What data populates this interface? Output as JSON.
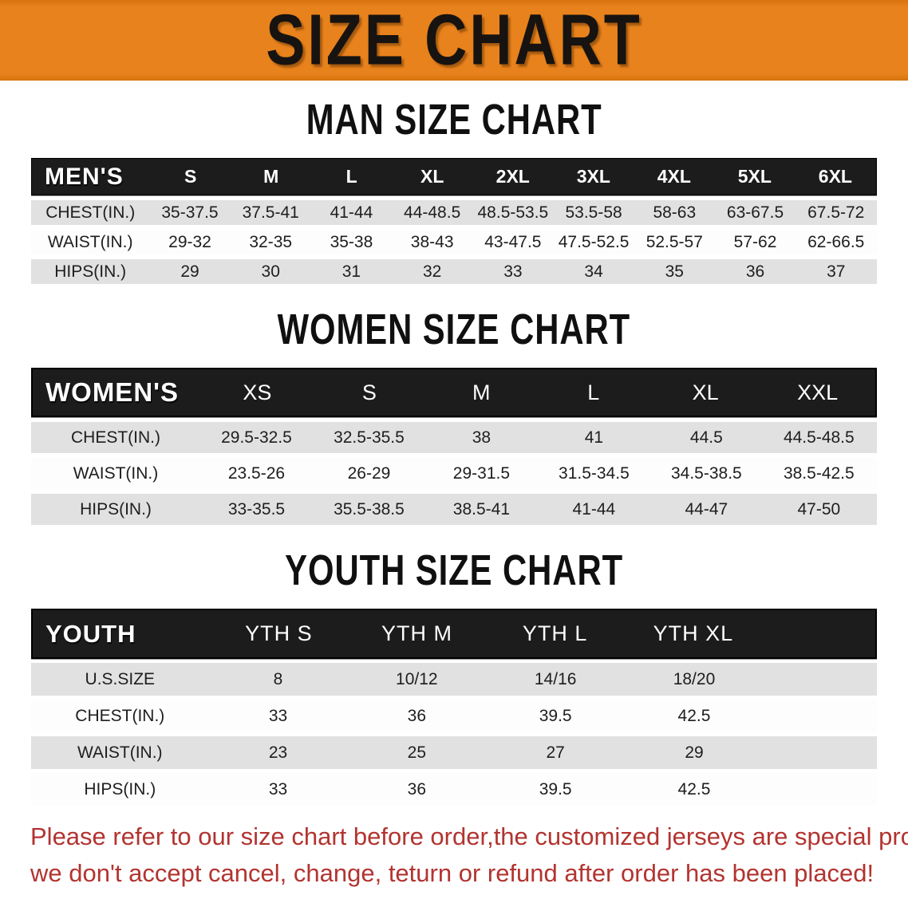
{
  "banner": {
    "title": "SIZE CHART"
  },
  "sections": [
    {
      "heading": "MAN SIZE CHART",
      "table": {
        "label": "MEN'S",
        "columns": [
          "S",
          "M",
          "L",
          "XL",
          "2XL",
          "3XL",
          "4XL",
          "5XL",
          "6XL"
        ],
        "rows": [
          {
            "label": "CHEST(IN.)",
            "values": [
              "35-37.5",
              "37.5-41",
              "41-44",
              "44-48.5",
              "48.5-53.5",
              "53.5-58",
              "58-63",
              "63-67.5",
              "67.5-72"
            ]
          },
          {
            "label": "WAIST(IN.)",
            "values": [
              "29-32",
              "32-35",
              "35-38",
              "38-43",
              "43-47.5",
              "47.5-52.5",
              "52.5-57",
              "57-62",
              "62-66.5"
            ]
          },
          {
            "label": "HIPS(IN.)",
            "values": [
              "29",
              "30",
              "31",
              "32",
              "33",
              "34",
              "35",
              "36",
              "37"
            ]
          }
        ]
      }
    },
    {
      "heading": "WOMEN SIZE CHART",
      "table": {
        "label": "WOMEN'S",
        "columns": [
          "XS",
          "S",
          "M",
          "L",
          "XL",
          "XXL"
        ],
        "rows": [
          {
            "label": "CHEST(IN.)",
            "values": [
              "29.5-32.5",
              "32.5-35.5",
              "38",
              "41",
              "44.5",
              "44.5-48.5"
            ]
          },
          {
            "label": "WAIST(IN.)",
            "values": [
              "23.5-26",
              "26-29",
              "29-31.5",
              "31.5-34.5",
              "34.5-38.5",
              "38.5-42.5"
            ]
          },
          {
            "label": "HIPS(IN.)",
            "values": [
              "33-35.5",
              "35.5-38.5",
              "38.5-41",
              "41-44",
              "44-47",
              "47-50"
            ]
          }
        ]
      }
    },
    {
      "heading": "YOUTH SIZE CHART",
      "table": {
        "label": "YOUTH",
        "columns": [
          "YTH S",
          "YTH M",
          "YTH L",
          "YTH XL"
        ],
        "rows": [
          {
            "label": "U.S.SIZE",
            "values": [
              "8",
              "10/12",
              "14/16",
              "18/20"
            ]
          },
          {
            "label": "CHEST(IN.)",
            "values": [
              "33",
              "36",
              "39.5",
              "42.5"
            ]
          },
          {
            "label": "WAIST(IN.)",
            "values": [
              "23",
              "25",
              "27",
              "29"
            ]
          },
          {
            "label": "HIPS(IN.)",
            "values": [
              "33",
              "36",
              "39.5",
              "42.5"
            ]
          }
        ]
      }
    }
  ],
  "footer": {
    "line1": "Please refer to our size chart before order,the customized jerseys are special products,",
    "line2": "we don't accept cancel, change, teturn or refund after order has been placed!"
  },
  "colors": {
    "banner_orange": "#E8821C",
    "band_black": "#1C1C1C",
    "stripe_gray": "#E1E1E1",
    "footer_red": "#B23430"
  }
}
